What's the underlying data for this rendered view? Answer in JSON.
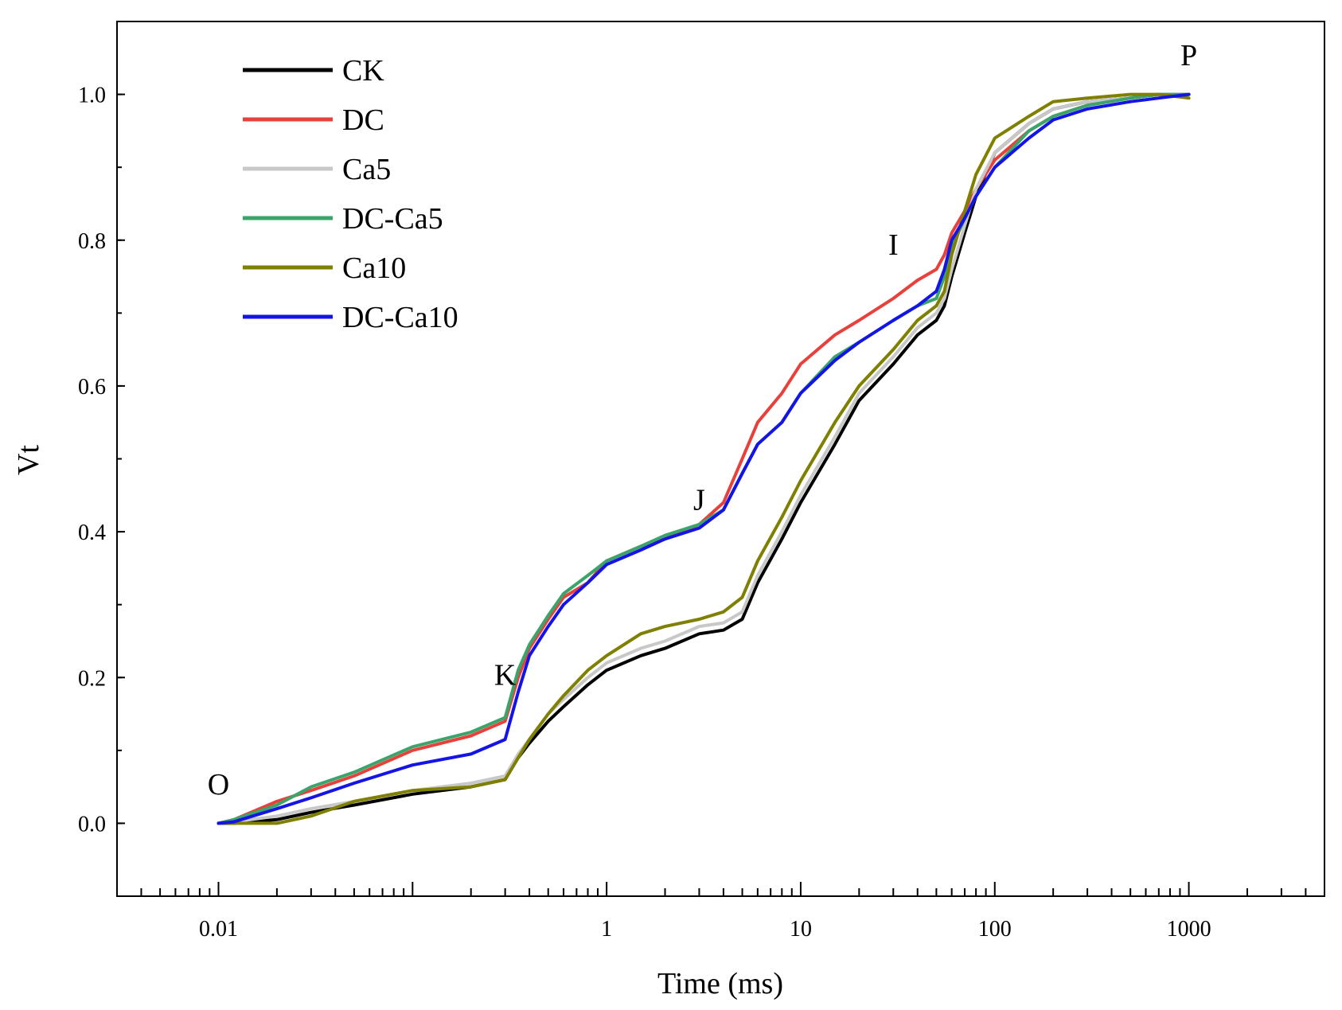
{
  "chart_data": {
    "type": "line",
    "title": "",
    "xlabel": "Time (ms)",
    "ylabel": "Vt",
    "xscale": "log",
    "xlim": [
      0.003,
      5000
    ],
    "ylim": [
      -0.1,
      1.1
    ],
    "xticks": [
      0.01,
      1,
      10,
      100,
      1000
    ],
    "xtick_labels": [
      "0.01",
      "1",
      "10",
      "100",
      "1000"
    ],
    "yticks": [
      0.0,
      0.2,
      0.4,
      0.6,
      0.8,
      1.0
    ],
    "ytick_labels": [
      "0.0",
      "0.2",
      "0.4",
      "0.6",
      "0.8",
      "1.0"
    ],
    "legend_position": "top-left",
    "annotations": [
      {
        "text": "O",
        "x": 0.01,
        "y": 0.04
      },
      {
        "text": "K",
        "x": 0.3,
        "y": 0.19
      },
      {
        "text": "J",
        "x": 3.0,
        "y": 0.43
      },
      {
        "text": "I",
        "x": 30,
        "y": 0.78
      },
      {
        "text": "P",
        "x": 1000,
        "y": 1.04
      }
    ],
    "series": [
      {
        "name": "CK",
        "color": "#000000",
        "x": [
          0.01,
          0.012,
          0.02,
          0.03,
          0.05,
          0.1,
          0.2,
          0.3,
          0.35,
          0.4,
          0.5,
          0.6,
          0.8,
          1,
          1.5,
          2,
          3,
          4,
          5,
          6,
          8,
          10,
          15,
          20,
          30,
          40,
          50,
          55,
          60,
          70,
          80,
          100,
          150,
          200,
          300,
          500,
          700,
          1000
        ],
        "values": [
          0.0,
          0.0,
          0.005,
          0.015,
          0.025,
          0.04,
          0.05,
          0.06,
          0.09,
          0.11,
          0.14,
          0.16,
          0.19,
          0.21,
          0.23,
          0.24,
          0.26,
          0.265,
          0.28,
          0.33,
          0.39,
          0.44,
          0.52,
          0.58,
          0.63,
          0.67,
          0.69,
          0.71,
          0.75,
          0.81,
          0.86,
          0.92,
          0.96,
          0.98,
          0.99,
          0.995,
          1.0,
          1.0
        ]
      },
      {
        "name": "DC",
        "color": "#e8413c",
        "x": [
          0.01,
          0.012,
          0.02,
          0.03,
          0.05,
          0.1,
          0.2,
          0.3,
          0.35,
          0.4,
          0.5,
          0.6,
          0.8,
          1,
          1.5,
          2,
          3,
          4,
          5,
          6,
          8,
          10,
          15,
          20,
          30,
          40,
          50,
          55,
          60,
          70,
          80,
          100,
          150,
          200,
          300,
          500,
          700,
          1000
        ],
        "values": [
          0.0,
          0.005,
          0.03,
          0.045,
          0.065,
          0.1,
          0.12,
          0.14,
          0.2,
          0.24,
          0.28,
          0.31,
          0.33,
          0.36,
          0.38,
          0.39,
          0.41,
          0.44,
          0.5,
          0.55,
          0.59,
          0.63,
          0.67,
          0.69,
          0.72,
          0.745,
          0.76,
          0.78,
          0.81,
          0.84,
          0.87,
          0.91,
          0.95,
          0.97,
          0.985,
          0.995,
          1.0,
          1.0
        ]
      },
      {
        "name": "Ca5",
        "color": "#c8c8c8",
        "x": [
          0.01,
          0.012,
          0.02,
          0.03,
          0.05,
          0.1,
          0.2,
          0.3,
          0.35,
          0.4,
          0.5,
          0.6,
          0.8,
          1,
          1.5,
          2,
          3,
          4,
          5,
          6,
          8,
          10,
          15,
          20,
          30,
          40,
          50,
          55,
          60,
          70,
          80,
          100,
          150,
          200,
          300,
          500,
          700,
          1000
        ],
        "values": [
          0.0,
          0.002,
          0.01,
          0.02,
          0.03,
          0.045,
          0.055,
          0.065,
          0.095,
          0.115,
          0.15,
          0.17,
          0.2,
          0.22,
          0.24,
          0.25,
          0.27,
          0.275,
          0.29,
          0.34,
          0.4,
          0.45,
          0.53,
          0.59,
          0.64,
          0.68,
          0.7,
          0.72,
          0.76,
          0.82,
          0.87,
          0.92,
          0.96,
          0.98,
          0.99,
          0.995,
          1.0,
          1.0
        ]
      },
      {
        "name": "DC-Ca5",
        "color": "#3aa56a",
        "x": [
          0.01,
          0.012,
          0.02,
          0.03,
          0.05,
          0.1,
          0.2,
          0.3,
          0.35,
          0.4,
          0.5,
          0.6,
          0.8,
          1,
          1.5,
          2,
          3,
          4,
          5,
          6,
          8,
          10,
          15,
          20,
          30,
          40,
          50,
          55,
          60,
          70,
          80,
          100,
          150,
          200,
          300,
          500,
          700,
          1000
        ],
        "values": [
          0.0,
          0.005,
          0.025,
          0.05,
          0.07,
          0.105,
          0.125,
          0.145,
          0.21,
          0.245,
          0.285,
          0.315,
          0.34,
          0.36,
          0.38,
          0.395,
          0.41,
          0.43,
          0.48,
          0.52,
          0.55,
          0.59,
          0.64,
          0.66,
          0.69,
          0.71,
          0.72,
          0.75,
          0.79,
          0.83,
          0.86,
          0.9,
          0.95,
          0.97,
          0.985,
          0.995,
          1.0,
          1.0
        ]
      },
      {
        "name": "Ca10",
        "color": "#7f7f00",
        "x": [
          0.01,
          0.012,
          0.02,
          0.03,
          0.05,
          0.1,
          0.2,
          0.3,
          0.35,
          0.4,
          0.5,
          0.6,
          0.8,
          1,
          1.5,
          2,
          3,
          4,
          5,
          6,
          8,
          10,
          15,
          20,
          30,
          40,
          50,
          55,
          60,
          70,
          80,
          100,
          150,
          200,
          300,
          500,
          700,
          1000
        ],
        "values": [
          0.0,
          0.0,
          0.0,
          0.01,
          0.03,
          0.045,
          0.05,
          0.06,
          0.09,
          0.115,
          0.15,
          0.175,
          0.21,
          0.23,
          0.26,
          0.27,
          0.28,
          0.29,
          0.31,
          0.36,
          0.42,
          0.47,
          0.55,
          0.6,
          0.65,
          0.69,
          0.71,
          0.73,
          0.78,
          0.84,
          0.89,
          0.94,
          0.97,
          0.99,
          0.995,
          1.0,
          1.0,
          0.995
        ]
      },
      {
        "name": "DC-Ca10",
        "color": "#1414e6",
        "x": [
          0.01,
          0.012,
          0.02,
          0.03,
          0.05,
          0.1,
          0.2,
          0.3,
          0.35,
          0.4,
          0.5,
          0.6,
          0.8,
          1,
          1.5,
          2,
          3,
          4,
          5,
          6,
          8,
          10,
          15,
          20,
          30,
          40,
          50,
          55,
          60,
          70,
          80,
          100,
          150,
          200,
          300,
          500,
          700,
          1000
        ],
        "values": [
          0.0,
          0.002,
          0.02,
          0.035,
          0.055,
          0.08,
          0.095,
          0.115,
          0.18,
          0.23,
          0.27,
          0.3,
          0.33,
          0.355,
          0.375,
          0.39,
          0.405,
          0.43,
          0.48,
          0.52,
          0.55,
          0.59,
          0.635,
          0.66,
          0.69,
          0.71,
          0.73,
          0.76,
          0.8,
          0.83,
          0.86,
          0.9,
          0.94,
          0.965,
          0.98,
          0.99,
          0.995,
          1.0
        ]
      }
    ]
  }
}
